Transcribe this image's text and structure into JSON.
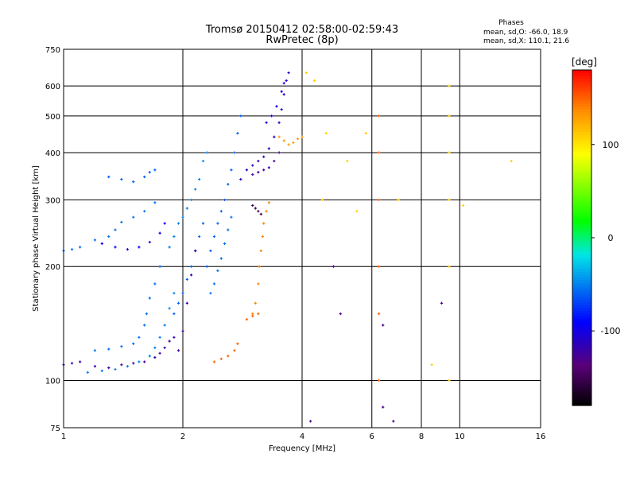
{
  "chart_data": {
    "type": "scatter",
    "title": "Tromsø 20150412 02:58:00-02:59:43",
    "subtitle": "RwPretec (8p)",
    "xlabel": "Frequency [MHz]",
    "ylabel": "Stationary phase Virtual Height [km]",
    "x_scale": "log",
    "y_scale": "log",
    "xlim": [
      1,
      16
    ],
    "ylim": [
      75,
      750
    ],
    "x_ticks": [
      1,
      2,
      4,
      6,
      8,
      10,
      16
    ],
    "x_tick_labels": [
      "1",
      "2",
      "4",
      "6",
      "8",
      "10",
      "16"
    ],
    "y_ticks": [
      75,
      100,
      200,
      300,
      400,
      500,
      600,
      750
    ],
    "y_tick_labels": [
      "75",
      "100",
      "200",
      "300",
      "400",
      "500",
      "600",
      "750"
    ],
    "grid": true,
    "stats": {
      "heading": "Phases",
      "line_o": "mean, sd,O: -66.0, 18.9",
      "line_x": "mean, sd,X: 110.1, 21.6"
    },
    "colorbar": {
      "label": "[deg]",
      "min": -180,
      "max": 180,
      "ticks": [
        100,
        0,
        -100
      ],
      "tick_labels": [
        "100",
        "0",
        "-100"
      ],
      "colormap": "rainbow"
    },
    "series": [
      {
        "points": [
          [
            1.0,
            110
          ],
          [
            1.05,
            111
          ],
          [
            1.1,
            112
          ],
          [
            1.2,
            109
          ],
          [
            1.3,
            108
          ],
          [
            1.4,
            110
          ],
          [
            1.5,
            111
          ],
          [
            1.6,
            112
          ],
          [
            1.7,
            115
          ],
          [
            1.75,
            118
          ],
          [
            1.8,
            122
          ],
          [
            1.85,
            127
          ],
          [
            1.9,
            130
          ]
        ],
        "phase": -120
      },
      {
        "points": [
          [
            1.15,
            105
          ],
          [
            1.25,
            106
          ],
          [
            1.35,
            107
          ],
          [
            1.45,
            109
          ],
          [
            1.55,
            112
          ],
          [
            1.65,
            116
          ],
          [
            1.7,
            122
          ],
          [
            1.75,
            130
          ],
          [
            1.8,
            140
          ],
          [
            1.85,
            155
          ],
          [
            1.9,
            170
          ]
        ],
        "phase": -50
      },
      {
        "points": [
          [
            1.2,
            120
          ],
          [
            1.3,
            121
          ],
          [
            1.4,
            123
          ],
          [
            1.5,
            125
          ],
          [
            1.55,
            130
          ],
          [
            1.6,
            140
          ],
          [
            1.62,
            150
          ],
          [
            1.65,
            165
          ],
          [
            1.7,
            180
          ],
          [
            1.75,
            200
          ]
        ],
        "phase": -55
      },
      {
        "points": [
          [
            1.0,
            220
          ],
          [
            1.05,
            222
          ],
          [
            1.1,
            225
          ],
          [
            1.2,
            235
          ],
          [
            1.3,
            240
          ],
          [
            1.35,
            250
          ],
          [
            1.4,
            262
          ],
          [
            1.5,
            270
          ],
          [
            1.6,
            280
          ],
          [
            1.7,
            295
          ]
        ],
        "phase": -55
      },
      {
        "points": [
          [
            1.25,
            230
          ],
          [
            1.35,
            225
          ],
          [
            1.45,
            222
          ],
          [
            1.55,
            225
          ],
          [
            1.65,
            232
          ],
          [
            1.75,
            245
          ],
          [
            1.8,
            260
          ]
        ],
        "phase": -95
      },
      {
        "points": [
          [
            1.3,
            345
          ],
          [
            1.4,
            340
          ],
          [
            1.5,
            335
          ],
          [
            1.6,
            345
          ],
          [
            1.65,
            355
          ],
          [
            1.7,
            360
          ]
        ],
        "phase": -60
      },
      {
        "points": [
          [
            1.85,
            225
          ],
          [
            1.9,
            240
          ],
          [
            1.95,
            260
          ],
          [
            2.0,
            270
          ],
          [
            2.05,
            285
          ],
          [
            2.1,
            300
          ],
          [
            2.15,
            320
          ],
          [
            2.2,
            340
          ],
          [
            2.25,
            380
          ],
          [
            2.3,
            400
          ]
        ],
        "phase": -50
      },
      {
        "points": [
          [
            1.9,
            150
          ],
          [
            1.95,
            160
          ],
          [
            2.0,
            170
          ],
          [
            2.05,
            185
          ],
          [
            2.1,
            200
          ],
          [
            2.15,
            220
          ],
          [
            2.2,
            240
          ],
          [
            2.25,
            260
          ]
        ],
        "phase": -60
      },
      {
        "points": [
          [
            1.95,
            120
          ],
          [
            2.0,
            135
          ],
          [
            2.05,
            160
          ],
          [
            2.1,
            190
          ],
          [
            2.15,
            220
          ]
        ],
        "phase": -120
      },
      {
        "points": [
          [
            2.3,
            200
          ],
          [
            2.35,
            220
          ],
          [
            2.4,
            240
          ],
          [
            2.45,
            260
          ],
          [
            2.5,
            280
          ],
          [
            2.55,
            300
          ],
          [
            2.6,
            330
          ],
          [
            2.65,
            360
          ],
          [
            2.7,
            400
          ],
          [
            2.75,
            450
          ],
          [
            2.8,
            500
          ]
        ],
        "phase": -60
      },
      {
        "points": [
          [
            2.35,
            170
          ],
          [
            2.4,
            180
          ],
          [
            2.45,
            195
          ],
          [
            2.5,
            210
          ],
          [
            2.55,
            230
          ],
          [
            2.6,
            250
          ],
          [
            2.65,
            270
          ]
        ],
        "phase": -55
      },
      {
        "points": [
          [
            2.8,
            340
          ],
          [
            2.9,
            360
          ],
          [
            3.0,
            370
          ],
          [
            3.1,
            380
          ],
          [
            3.2,
            390
          ],
          [
            3.3,
            410
          ],
          [
            3.4,
            440
          ],
          [
            3.5,
            480
          ],
          [
            3.55,
            520
          ],
          [
            3.6,
            570
          ],
          [
            3.65,
            620
          ],
          [
            3.7,
            650
          ]
        ],
        "phase": -110
      },
      {
        "points": [
          [
            3.0,
            350
          ],
          [
            3.1,
            355
          ],
          [
            3.2,
            360
          ],
          [
            3.3,
            365
          ],
          [
            3.4,
            380
          ],
          [
            3.5,
            400
          ]
        ],
        "phase": -125
      },
      {
        "points": [
          [
            3.25,
            480
          ],
          [
            3.35,
            500
          ],
          [
            3.45,
            530
          ],
          [
            3.55,
            580
          ],
          [
            3.6,
            610
          ]
        ],
        "phase": -95
      },
      {
        "points": [
          [
            3.5,
            440
          ],
          [
            3.6,
            430
          ],
          [
            3.7,
            420
          ],
          [
            3.8,
            425
          ],
          [
            3.9,
            435
          ],
          [
            4.0,
            440
          ]
        ],
        "phase": 130
      },
      {
        "points": [
          [
            3.0,
            150
          ],
          [
            3.05,
            160
          ],
          [
            3.1,
            180
          ],
          [
            3.12,
            200
          ],
          [
            3.15,
            220
          ],
          [
            3.18,
            240
          ],
          [
            3.2,
            260
          ],
          [
            3.25,
            280
          ],
          [
            3.3,
            295
          ]
        ],
        "phase": 140
      },
      {
        "points": [
          [
            2.9,
            145
          ],
          [
            3.0,
            148
          ],
          [
            3.1,
            150
          ]
        ],
        "phase": 150
      },
      {
        "points": [
          [
            2.4,
            112
          ],
          [
            2.5,
            114
          ],
          [
            2.6,
            116
          ],
          [
            2.7,
            120
          ],
          [
            2.75,
            125
          ]
        ],
        "phase": 150
      },
      {
        "points": [
          [
            3.0,
            290
          ],
          [
            3.05,
            285
          ],
          [
            3.1,
            280
          ],
          [
            3.15,
            275
          ]
        ],
        "phase": -150
      },
      {
        "points": [
          [
            6.25,
            100
          ],
          [
            6.25,
            150
          ],
          [
            6.25,
            200
          ],
          [
            6.25,
            300
          ],
          [
            6.25,
            400
          ],
          [
            6.25,
            500
          ]
        ],
        "phase": 150
      },
      {
        "points": [
          [
            9.4,
            100
          ],
          [
            9.4,
            200
          ],
          [
            9.4,
            300
          ],
          [
            9.4,
            400
          ],
          [
            9.4,
            500
          ],
          [
            9.4,
            600
          ]
        ],
        "phase": 110
      },
      {
        "points": [
          [
            4.1,
            650
          ],
          [
            4.3,
            620
          ],
          [
            4.6,
            450
          ],
          [
            5.2,
            380
          ],
          [
            5.8,
            450
          ],
          [
            4.5,
            300
          ],
          [
            5.5,
            280
          ],
          [
            7.0,
            300
          ],
          [
            8.5,
            110
          ],
          [
            10.2,
            290
          ],
          [
            13.5,
            380
          ]
        ],
        "phase": 110
      },
      {
        "points": [
          [
            4.2,
            78
          ],
          [
            4.8,
            200
          ],
          [
            5.0,
            150
          ],
          [
            6.4,
            140
          ],
          [
            6.8,
            78
          ],
          [
            6.4,
            85
          ],
          [
            9.0,
            160
          ]
        ],
        "phase": -130
      }
    ]
  }
}
